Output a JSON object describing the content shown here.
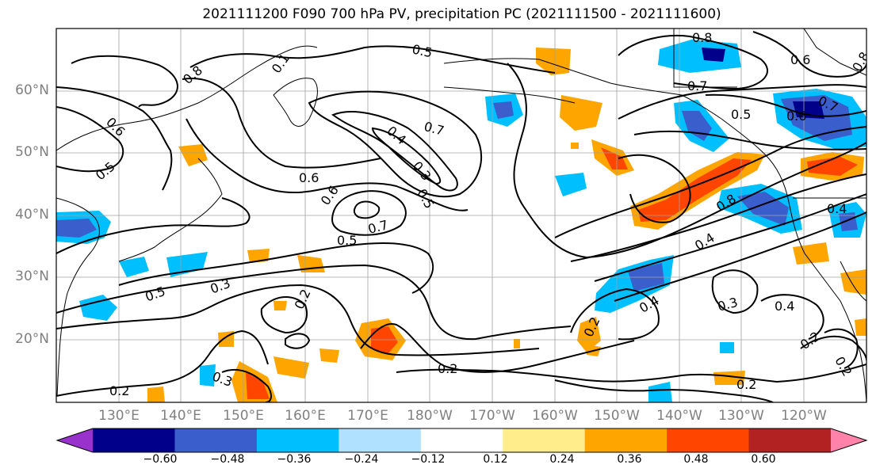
{
  "title": "2021111200 F090 700 hPa PV, precipitation PC (2021111500 - 2021111600)",
  "axes": {
    "lat_labels": [
      "60°N",
      "50°N",
      "40°N",
      "30°N",
      "20°N"
    ],
    "lon_labels": [
      "130°E",
      "140°E",
      "150°E",
      "160°E",
      "170°E",
      "180°W",
      "170°W",
      "160°W",
      "150°W",
      "140°W",
      "130°W",
      "120°W"
    ]
  },
  "colorbar": {
    "labels": [
      "−0.60",
      "−0.48",
      "−0.36",
      "−0.24",
      "−0.12",
      "0.12",
      "0.24",
      "0.36",
      "0.48",
      "0.60"
    ],
    "colors": [
      "#9932cc",
      "#00008b",
      "#3a5fcd",
      "#00bfff",
      "#b0e2ff",
      "#ffffff",
      "#ffec8b",
      "#ffa500",
      "#ff4500",
      "#b22222",
      "#ff82ab"
    ]
  },
  "contour_labels": [
    "0.8",
    "0.5",
    "0.1",
    "0.6",
    "0.8",
    "0.7",
    "0.6",
    "0.5",
    "0.7",
    "0.8",
    "0.6",
    "0.5",
    "0.4",
    "0.3",
    "0.5",
    "0.6",
    "0.6",
    "0.7",
    "0.5",
    "0.5",
    "0.3",
    "0.2",
    "0.7",
    "0.8",
    "0.4",
    "0.4",
    "0.4",
    "0.3",
    "0.4",
    "0.2",
    "0.2",
    "0.2",
    "0.3",
    "0.2",
    "0.2",
    "0.2"
  ]
}
